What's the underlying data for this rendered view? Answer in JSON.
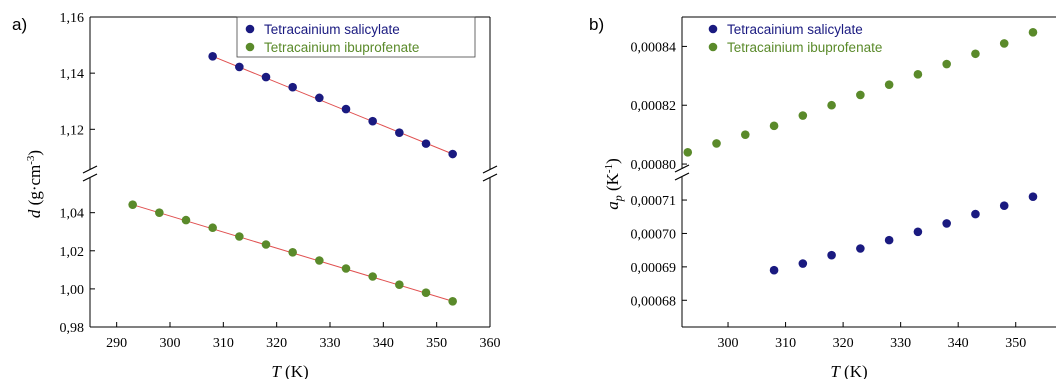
{
  "colors": {
    "salicylate": "#1a1a80",
    "ibuprofenate": "#5a8a2a",
    "fitline": "#e05050",
    "axis": "#000000"
  },
  "chart_data": [
    {
      "type": "scatter",
      "panel_label": "a)",
      "xlabel_var": "T",
      "xlabel_unit": " (K)",
      "ylabel_var": "d",
      "ylabel_unit": " (g·cm",
      "ylabel_exp": "-3",
      "ylabel_close": ")",
      "xlim": [
        285,
        360
      ],
      "x_ticks": [
        290,
        300,
        310,
        320,
        330,
        340,
        350,
        360
      ],
      "x_tick_labels": [
        "290",
        "300",
        "310",
        "320",
        "330",
        "340",
        "350",
        "360"
      ],
      "broken_y_axis": true,
      "y_upper_range": [
        1.108,
        1.16
      ],
      "y_upper_ticks": [
        1.12,
        1.14,
        1.16
      ],
      "y_upper_tick_labels": [
        "1,12",
        "1,14",
        "1,16"
      ],
      "y_lower_range": [
        0.98,
        1.054
      ],
      "y_lower_ticks": [
        0.98,
        1.0,
        1.02,
        1.04
      ],
      "y_lower_tick_labels": [
        "0,98",
        "1,00",
        "1,02",
        "1,04"
      ],
      "legend_position": "top-right",
      "series": [
        {
          "name": "Tetracainium salicylate",
          "color": "#1a1a80",
          "segment": "upper",
          "x": [
            308,
            313,
            318,
            323,
            328,
            333,
            338,
            343,
            348,
            353
          ],
          "y": [
            1.146,
            1.1422,
            1.1386,
            1.135,
            1.1312,
            1.1272,
            1.1229,
            1.1188,
            1.1149,
            1.1112
          ],
          "fit_line": true
        },
        {
          "name": "Tetracainium ibuprofenate",
          "color": "#5a8a2a",
          "segment": "lower",
          "x": [
            293,
            298,
            303,
            308,
            313,
            318,
            323,
            328,
            333,
            338,
            343,
            348,
            353
          ],
          "y": [
            1.0442,
            1.04,
            1.0361,
            1.0321,
            1.0275,
            1.0233,
            1.0192,
            1.0149,
            1.0107,
            1.0065,
            1.0022,
            0.998,
            0.9935
          ],
          "fit_line": true
        }
      ]
    },
    {
      "type": "scatter",
      "panel_label": "b)",
      "xlabel_var": "T",
      "xlabel_unit": " (K)",
      "ylabel_var": "a",
      "ylabel_sub": "p",
      "ylabel_unit": " (K",
      "ylabel_exp": "-1",
      "ylabel_close": ")",
      "xlim": [
        292,
        357
      ],
      "x_ticks": [
        300,
        310,
        320,
        330,
        340,
        350
      ],
      "x_tick_labels": [
        "300",
        "310",
        "320",
        "330",
        "340",
        "350"
      ],
      "broken_y_axis": true,
      "y_upper_range": [
        0.000799,
        0.00085
      ],
      "y_upper_ticks": [
        0.0008,
        0.00082,
        0.00084
      ],
      "y_upper_tick_labels": [
        "0,00080",
        "0,00082",
        "0,00084"
      ],
      "y_lower_range": [
        0.000672,
        0.000716
      ],
      "y_lower_ticks": [
        0.00068,
        0.00069,
        0.0007,
        0.00071
      ],
      "y_lower_tick_labels": [
        "0,00068",
        "0,00069",
        "0,00070",
        "0,00071"
      ],
      "legend_position": "top-left",
      "series": [
        {
          "name": "Tetracainium salicylate",
          "color": "#1a1a80",
          "segment": "lower",
          "x": [
            308,
            313,
            318,
            323,
            328,
            333,
            338,
            343,
            348,
            353
          ],
          "y": [
            0.000689,
            0.000691,
            0.0006935,
            0.0006955,
            0.000698,
            0.0007005,
            0.000703,
            0.0007058,
            0.0007083,
            0.000711
          ],
          "fit_line": false
        },
        {
          "name": "Tetracainium ibuprofenate",
          "color": "#5a8a2a",
          "segment": "upper",
          "x": [
            293,
            298,
            303,
            308,
            313,
            318,
            323,
            328,
            333,
            338,
            343,
            348,
            353
          ],
          "y": [
            0.000804,
            0.000807,
            0.00081,
            0.000813,
            0.0008165,
            0.00082,
            0.0008235,
            0.000827,
            0.0008305,
            0.000834,
            0.0008375,
            0.000841,
            0.0008448
          ],
          "fit_line": false
        }
      ]
    }
  ]
}
